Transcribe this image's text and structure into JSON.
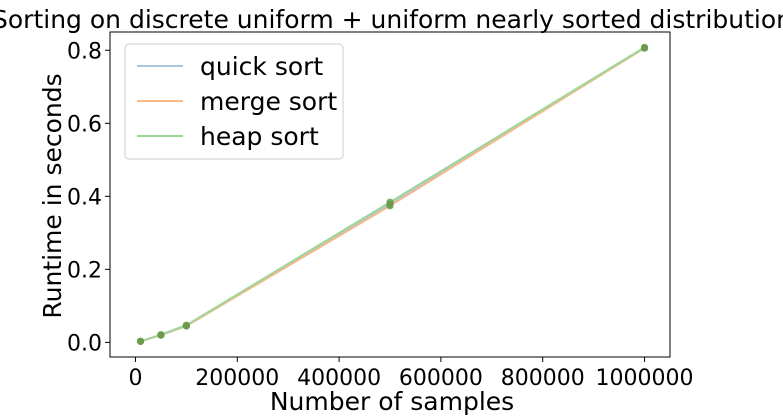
{
  "chart_data": {
    "type": "line",
    "title": "Sorting on discrete uniform + uniform nearly sorted distribution",
    "xlabel": "Number of samples",
    "ylabel": "Runtime in seconds",
    "x": [
      10000,
      50000,
      100000,
      500000,
      1000000
    ],
    "series": [
      {
        "name": "quick sort",
        "color": "#aac6e0",
        "values": [
          0.003,
          0.02,
          0.045,
          0.378,
          0.806
        ]
      },
      {
        "name": "merge sort",
        "color": "#f5b98a",
        "values": [
          0.003,
          0.02,
          0.045,
          0.374,
          0.806
        ]
      },
      {
        "name": "heap sort",
        "color": "#9ed69a",
        "values": [
          0.003,
          0.021,
          0.047,
          0.384,
          0.808
        ]
      }
    ],
    "marker_color": "#6a9a4a",
    "xlim": [
      -50000,
      1050000
    ],
    "ylim": [
      -0.04,
      0.85
    ],
    "xticks": [
      0,
      200000,
      400000,
      600000,
      800000,
      1000000
    ],
    "xtick_labels": [
      "0",
      "200000",
      "400000",
      "600000",
      "800000",
      "1000000"
    ],
    "yticks": [
      0.0,
      0.2,
      0.4,
      0.6,
      0.8
    ],
    "ytick_labels": [
      "0.0",
      "0.2",
      "0.4",
      "0.6",
      "0.8"
    ],
    "grid": false,
    "legend_position": "top-left"
  }
}
